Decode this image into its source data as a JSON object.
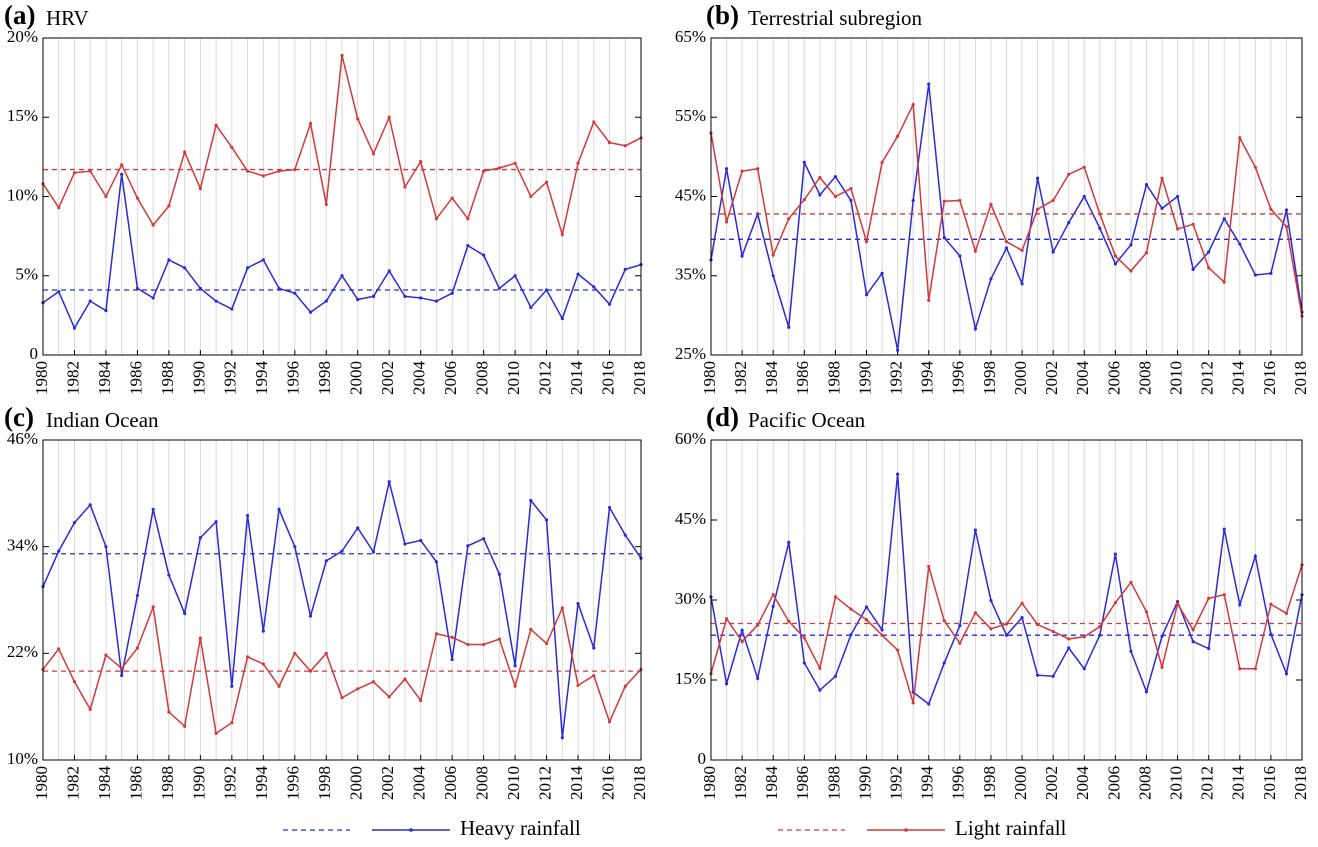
{
  "chart_data": [
    {
      "type": "line",
      "label": "(a)",
      "title": "HRV",
      "x": [
        1980,
        1981,
        1982,
        1983,
        1984,
        1985,
        1986,
        1987,
        1988,
        1989,
        1990,
        1991,
        1992,
        1993,
        1994,
        1995,
        1996,
        1997,
        1998,
        1999,
        2000,
        2001,
        2002,
        2003,
        2004,
        2005,
        2006,
        2007,
        2008,
        2009,
        2010,
        2011,
        2012,
        2013,
        2014,
        2015,
        2016,
        2017,
        2018
      ],
      "xlim": [
        1980,
        2018
      ],
      "xticks": [
        1980,
        1982,
        1984,
        1986,
        1988,
        1990,
        1992,
        1994,
        1996,
        1998,
        2000,
        2002,
        2004,
        2006,
        2008,
        2010,
        2012,
        2014,
        2016,
        2018
      ],
      "ylim": [
        0,
        20
      ],
      "yticks": [
        0,
        {
          "value": 5,
          "label": "5%"
        },
        {
          "value": 10,
          "label": "10%"
        },
        {
          "value": 15,
          "label": "15%"
        },
        {
          "value": 20,
          "label": "20%"
        }
      ],
      "grid": true,
      "series": [
        {
          "color": "#2b2bd6",
          "mean": 4.1,
          "values": [
            3.3,
            4.0,
            1.7,
            3.4,
            2.8,
            11.4,
            4.2,
            3.6,
            6.0,
            5.5,
            4.2,
            3.4,
            2.9,
            5.5,
            6.0,
            4.2,
            3.9,
            2.7,
            3.4,
            5.0,
            3.5,
            3.7,
            5.3,
            3.7,
            3.6,
            3.4,
            3.9,
            6.9,
            6.3,
            4.2,
            5.0,
            3.0,
            4.1,
            2.3,
            5.1,
            4.3,
            3.2,
            5.4,
            5.7
          ]
        },
        {
          "color": "#d03a3a",
          "mean": 11.7,
          "values": [
            10.8,
            9.3,
            11.5,
            11.6,
            10.0,
            12.0,
            9.9,
            8.2,
            9.4,
            12.8,
            10.5,
            14.5,
            13.1,
            11.6,
            11.3,
            11.6,
            11.7,
            14.6,
            9.5,
            18.9,
            14.9,
            12.7,
            15.0,
            10.6,
            12.2,
            8.6,
            9.9,
            8.6,
            11.6,
            11.8,
            12.1,
            10.0,
            10.9,
            7.6,
            12.1,
            14.7,
            13.4,
            13.2,
            13.7
          ]
        }
      ]
    },
    {
      "type": "line",
      "label": "(b)",
      "title": "Terrestrial subregion",
      "x": [
        1980,
        1981,
        1982,
        1983,
        1984,
        1985,
        1986,
        1987,
        1988,
        1989,
        1990,
        1991,
        1992,
        1993,
        1994,
        1995,
        1996,
        1997,
        1998,
        1999,
        2000,
        2001,
        2002,
        2003,
        2004,
        2005,
        2006,
        2007,
        2008,
        2009,
        2010,
        2011,
        2012,
        2013,
        2014,
        2015,
        2016,
        2017,
        2018
      ],
      "xlim": [
        1980,
        2018
      ],
      "xticks": [
        1980,
        1982,
        1984,
        1986,
        1988,
        1990,
        1992,
        1994,
        1996,
        1998,
        2000,
        2002,
        2004,
        2006,
        2008,
        2010,
        2012,
        2014,
        2016,
        2018
      ],
      "ylim": [
        25,
        65
      ],
      "yticks": [
        {
          "value": 25,
          "label": "25%"
        },
        {
          "value": 35,
          "label": "35%"
        },
        {
          "value": 45,
          "label": "45%"
        },
        {
          "value": 55,
          "label": "55%"
        },
        {
          "value": 65,
          "label": "65%"
        }
      ],
      "grid": true,
      "series": [
        {
          "color": "#2b2bd6",
          "mean": 39.6,
          "values": [
            37,
            48.5,
            37.5,
            42.8,
            35,
            28.5,
            49.3,
            45.2,
            47.5,
            44.5,
            32.6,
            35.3,
            25.6,
            44.5,
            59.2,
            39.8,
            37.5,
            28.3,
            34.6,
            38.5,
            34,
            47.3,
            38,
            41.7,
            45,
            41,
            36.5,
            38.9,
            46.5,
            43.5,
            45,
            35.8,
            38,
            42.2,
            39,
            35.1,
            35.3,
            43.3,
            30.4
          ]
        },
        {
          "color": "#d03a3a",
          "mean": 42.8,
          "values": [
            53,
            41.8,
            48.2,
            48.5,
            37.6,
            42.2,
            44.6,
            47.4,
            45,
            46,
            39.3,
            49.3,
            52.6,
            56.6,
            31.9,
            44.4,
            44.5,
            38.1,
            44,
            39.3,
            38.2,
            43.4,
            44.5,
            47.8,
            48.7,
            42.8,
            37.5,
            35.6,
            37.9,
            47.3,
            40.9,
            41.5,
            36,
            34.2,
            52.4,
            48.7,
            43.4,
            41.2,
            29.9
          ]
        }
      ]
    },
    {
      "type": "line",
      "label": "(c)",
      "title": "Indian Ocean",
      "x": [
        1980,
        1981,
        1982,
        1983,
        1984,
        1985,
        1986,
        1987,
        1988,
        1989,
        1990,
        1991,
        1992,
        1993,
        1994,
        1995,
        1996,
        1997,
        1998,
        1999,
        2000,
        2001,
        2002,
        2003,
        2004,
        2005,
        2006,
        2007,
        2008,
        2009,
        2010,
        2011,
        2012,
        2013,
        2014,
        2015,
        2016,
        2017,
        2018
      ],
      "xlim": [
        1980,
        2018
      ],
      "xticks": [
        1980,
        1982,
        1984,
        1986,
        1988,
        1990,
        1992,
        1994,
        1996,
        1998,
        2000,
        2002,
        2004,
        2006,
        2008,
        2010,
        2012,
        2014,
        2016,
        2018
      ],
      "ylim": [
        10,
        46
      ],
      "yticks": [
        {
          "value": 10,
          "label": "10%"
        },
        {
          "value": 22,
          "label": "22%"
        },
        {
          "value": 34,
          "label": "34%"
        },
        {
          "value": 46,
          "label": "46%"
        }
      ],
      "grid": true,
      "series": [
        {
          "color": "#2b2bd6",
          "mean": 33.2,
          "values": [
            29.5,
            33.5,
            36.7,
            38.7,
            34,
            19.5,
            28.5,
            38.2,
            30.8,
            26.5,
            35,
            36.8,
            18.3,
            37.5,
            24.5,
            38.2,
            34,
            26.2,
            32.4,
            33.5,
            36.1,
            33.4,
            41.3,
            34.3,
            34.7,
            32.3,
            21.3,
            34.1,
            34.9,
            30.9,
            20.6,
            39.2,
            37,
            12.5,
            27.6,
            22.6,
            38.4,
            35.3,
            32.7
          ]
        },
        {
          "color": "#d03a3a",
          "mean": 20,
          "values": [
            20.2,
            22.5,
            18.8,
            15.7,
            21.8,
            20.3,
            22.6,
            27.2,
            15.4,
            13.8,
            23.7,
            13,
            14.2,
            21.6,
            20.8,
            18.3,
            22,
            20,
            22,
            17,
            18,
            18.8,
            17.1,
            19.1,
            16.7,
            24.2,
            23.8,
            23,
            23,
            23.6,
            18.3,
            24.7,
            23.1,
            27.1,
            18.4,
            19.5,
            14.3,
            18.3,
            20.2
          ]
        }
      ]
    },
    {
      "type": "line",
      "label": "(d)",
      "title": "Pacific Ocean",
      "x": [
        1980,
        1981,
        1982,
        1983,
        1984,
        1985,
        1986,
        1987,
        1988,
        1989,
        1990,
        1991,
        1992,
        1993,
        1994,
        1995,
        1996,
        1997,
        1998,
        1999,
        2000,
        2001,
        2002,
        2003,
        2004,
        2005,
        2006,
        2007,
        2008,
        2009,
        2010,
        2011,
        2012,
        2013,
        2014,
        2015,
        2016,
        2017,
        2018
      ],
      "xlim": [
        1980,
        2018
      ],
      "xticks": [
        1980,
        1982,
        1984,
        1986,
        1988,
        1990,
        1992,
        1994,
        1996,
        1998,
        2000,
        2002,
        2004,
        2006,
        2008,
        2010,
        2012,
        2014,
        2016,
        2018
      ],
      "ylim": [
        0,
        60
      ],
      "yticks": [
        0,
        {
          "value": 15,
          "label": "15%"
        },
        {
          "value": 30,
          "label": "30%"
        },
        {
          "value": 45,
          "label": "45%"
        },
        {
          "value": 60,
          "label": "60%"
        }
      ],
      "grid": true,
      "series": [
        {
          "color": "#2b2bd6",
          "mean": 23.4,
          "values": [
            30.6,
            14.3,
            24.3,
            15.3,
            28.8,
            40.8,
            18.2,
            13.1,
            15.7,
            23.5,
            28.7,
            24.4,
            53.6,
            12.7,
            10.5,
            18.2,
            25.2,
            43.1,
            29.9,
            23.4,
            26.7,
            15.9,
            15.7,
            21,
            17.1,
            23.4,
            38.6,
            20.4,
            12.8,
            23.2,
            29.7,
            22.2,
            20.9,
            43.3,
            29.1,
            38.2,
            23.6,
            16.2,
            31
          ]
        },
        {
          "color": "#d03a3a",
          "mean": 25.6,
          "values": [
            16.2,
            26.5,
            22.2,
            25.3,
            31,
            26,
            22.9,
            17.2,
            30.6,
            28.3,
            26.3,
            23.4,
            20.6,
            10.7,
            36.3,
            26.1,
            21.9,
            27.6,
            24.6,
            25.5,
            29.4,
            25.4,
            24.1,
            22.7,
            23.1,
            25,
            29.5,
            33.3,
            27.8,
            17.4,
            29.3,
            24.4,
            30.3,
            31,
            17.1,
            17.1,
            29.2,
            27.5,
            36.6
          ]
        }
      ]
    }
  ],
  "legend": [
    {
      "name": "Heavy rainfall",
      "color": "#2b2bd6"
    },
    {
      "name": "Light rainfall",
      "color": "#d03a3a"
    }
  ]
}
